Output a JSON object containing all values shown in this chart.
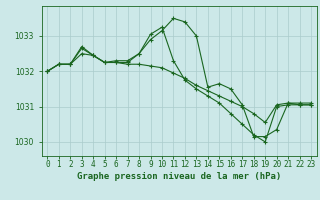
{
  "xlabel": "Graphe pression niveau de la mer (hPa)",
  "background_color": "#cce8e8",
  "grid_color": "#aacccc",
  "line_color": "#1a6620",
  "hours": [
    0,
    1,
    2,
    3,
    4,
    5,
    6,
    7,
    8,
    9,
    10,
    11,
    12,
    13,
    14,
    15,
    16,
    17,
    18,
    19,
    20,
    21,
    22,
    23
  ],
  "series1": [
    1032.0,
    1032.2,
    1032.2,
    1032.7,
    1032.45,
    1032.25,
    1032.3,
    1032.3,
    1032.5,
    1032.9,
    1033.15,
    1033.5,
    1033.4,
    1033.0,
    1031.55,
    1031.65,
    1031.5,
    1031.05,
    1030.15,
    1030.15,
    1030.35,
    1031.1,
    1031.1,
    1031.1
  ],
  "series2": [
    1032.0,
    1032.2,
    1032.2,
    1032.5,
    1032.45,
    1032.25,
    1032.25,
    1032.2,
    1032.2,
    1032.15,
    1032.1,
    1031.95,
    1031.8,
    1031.6,
    1031.45,
    1031.3,
    1031.15,
    1031.0,
    1030.8,
    1030.55,
    1031.05,
    1031.1,
    1031.05,
    1031.05
  ],
  "series3": [
    1032.0,
    1032.2,
    1032.2,
    1032.65,
    1032.45,
    1032.25,
    1032.25,
    1032.25,
    1032.5,
    1033.05,
    1033.25,
    1032.3,
    1031.75,
    1031.5,
    1031.3,
    1031.1,
    1030.8,
    1030.5,
    1030.2,
    1030.0,
    1031.0,
    1031.05,
    1031.05,
    1031.05
  ],
  "ylim": [
    1029.6,
    1033.85
  ],
  "yticks": [
    1030,
    1031,
    1032,
    1033
  ],
  "tick_fontsize": 5.5,
  "xlabel_fontsize": 6.5
}
